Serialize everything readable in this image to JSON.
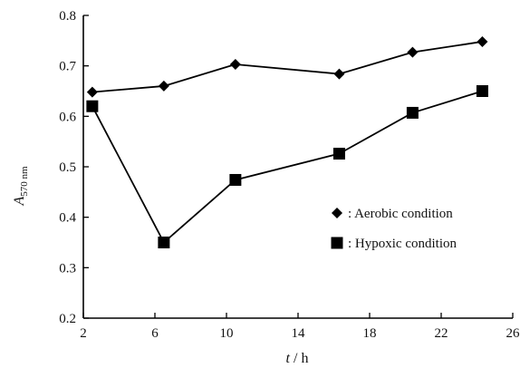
{
  "chart_data": {
    "type": "line",
    "title": "",
    "xlabel": "t / h",
    "xlabel_var": "t",
    "xlabel_unit": " / h",
    "ylabel": "A570 nm",
    "ylabel_var": "A",
    "ylabel_sub": "570 nm",
    "xlim": [
      2,
      26
    ],
    "ylim": [
      0.2,
      0.8
    ],
    "xticks": [
      2,
      6,
      10,
      14,
      18,
      22,
      26
    ],
    "xtick_labels": [
      "2",
      "6",
      "10",
      "14",
      "18",
      "22",
      "26"
    ],
    "yticks": [
      0.2,
      0.3,
      0.4,
      0.5,
      0.6,
      0.7,
      0.8
    ],
    "ytick_labels": [
      "0.2",
      "0.3",
      "0.4",
      "0.5",
      "0.6",
      "0.7",
      "0.8"
    ],
    "grid": false,
    "legend_position": "center-right",
    "series": [
      {
        "name": ": Aerobic condition",
        "marker": "diamond",
        "color": "#000000",
        "x": [
          2.5,
          6.5,
          10.5,
          16.3,
          20.4,
          24.3
        ],
        "y": [
          0.648,
          0.66,
          0.703,
          0.684,
          0.727,
          0.748
        ]
      },
      {
        "name": ": Hypoxic condition",
        "marker": "square",
        "color": "#000000",
        "x": [
          2.5,
          6.5,
          10.5,
          16.3,
          20.4,
          24.3
        ],
        "y": [
          0.62,
          0.35,
          0.474,
          0.526,
          0.607,
          0.65
        ]
      }
    ]
  }
}
